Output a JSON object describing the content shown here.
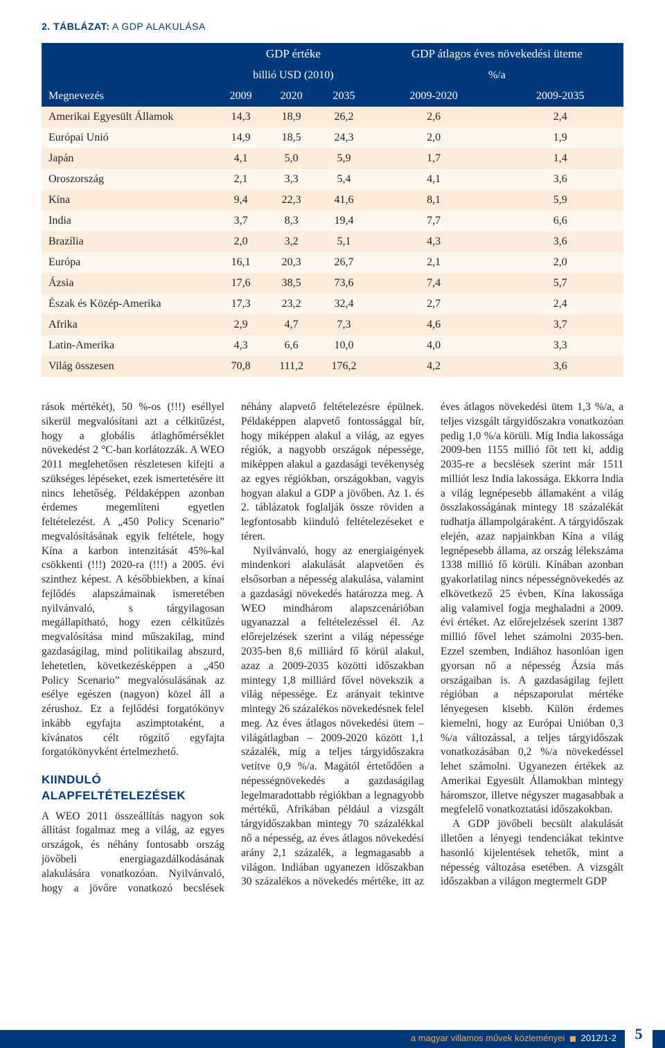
{
  "table": {
    "title_bold": "2. TÁBLÁZAT:",
    "title_rest": " A GDP ALAKULÁSA",
    "group_headers": {
      "blank": "",
      "gdp_value": "GDP értéke",
      "gdp_growth": "GDP átlagos éves növekedési üteme"
    },
    "unit_headers": {
      "billion_usd": "billió USD (2010)",
      "pct_a": "%/a"
    },
    "col_headers": [
      "Megnevezés",
      "2009",
      "2020",
      "2035",
      "2009-2020",
      "2009-2035"
    ],
    "rows": [
      {
        "name": "Amerikai Egyesült Államok",
        "v": [
          "14,3",
          "18,9",
          "26,2",
          "2,6",
          "2,4"
        ]
      },
      {
        "name": "Európai Unió",
        "v": [
          "14,9",
          "18,5",
          "24,3",
          "2,0",
          "1,9"
        ]
      },
      {
        "name": "Japán",
        "v": [
          "4,1",
          "5,0",
          "5,9",
          "1,7",
          "1,4"
        ]
      },
      {
        "name": "Oroszország",
        "v": [
          "2,1",
          "3,3",
          "5,4",
          "4,1",
          "3,6"
        ]
      },
      {
        "name": "Kína",
        "v": [
          "9,4",
          "22,3",
          "41,6",
          "8,1",
          "5,9"
        ]
      },
      {
        "name": "India",
        "v": [
          "3,7",
          "8,3",
          "19,4",
          "7,7",
          "6,6"
        ]
      },
      {
        "name": "Brazília",
        "v": [
          "2,0",
          "3,2",
          "5,1",
          "4,3",
          "3,6"
        ]
      },
      {
        "name": "Európa",
        "v": [
          "16,1",
          "20,3",
          "26,7",
          "2,1",
          "2,0"
        ]
      },
      {
        "name": "Ázsia",
        "v": [
          "17,6",
          "38,5",
          "73,6",
          "7,4",
          "5,7"
        ]
      },
      {
        "name": "Észak és Közép-Amerika",
        "v": [
          "17,3",
          "23,2",
          "32,4",
          "2,7",
          "2,4"
        ]
      },
      {
        "name": "Afrika",
        "v": [
          "2,9",
          "4,7",
          "7,3",
          "4,6",
          "3,7"
        ]
      },
      {
        "name": "Latin-Amerika",
        "v": [
          "4,3",
          "6,6",
          "10,0",
          "4,0",
          "3,3"
        ]
      },
      {
        "name": "Világ összesen",
        "v": [
          "70,8",
          "111,2",
          "176,2",
          "4,2",
          "3,6"
        ]
      }
    ],
    "colors": {
      "header_bg": "#003a7a",
      "stripe_a": "#fdecda",
      "stripe_b": "#fef7ee"
    }
  },
  "body": {
    "p1": "rások mértékét), 50 %-os (!!!) eséllyel sikerül megvalósítani azt a célkitűzést, hogy a globális átlaghőmérséklet növekedést 2 °C-ban korlátozzák. A WEO 2011 meglehetősen részletesen kifejti a szükséges lépéseket, ezek ismertetésére itt nincs lehetőség. Példaképpen azonban érdemes megemlíteni egyetlen feltételezést. A „450 Policy Scenario” megvalósításának egyik feltétele, hogy Kína a karbon intenzitását 45%-kal csökkenti (!!!) 2020-ra (!!!) a 2005. évi szinthez képest. A későbbiekben, a kínai fejlődés alapszámainak ismeretében nyilvánvaló, s tárgyilagosan megállapítható, hogy ezen célkitűzés megvalósítása mind műszakilag, mind gazdaságilag, mind politikailag abszurd, lehetetlen, következésképpen a „450 Policy Scenario” megvalósulásának az esélye egészen (nagyon) közel áll a zérushoz. Ez a fejlődési forgatókönyv inkább egyfajta aszimptotaként, a kívánatos célt rögzítő egyfajta forgatókönyvként értelmezhető.",
    "h2": "KIINDULÓ ALAPFELTÉTELEZÉSEK",
    "p2": "A WEO 2011 összeállítás nagyon sok állítást fogalmaz meg a világ, az egyes országok, és néhány fontosabb ország jövőbeli energiagazdálkodásának alakulására vonatkozóan. Nyilvánvaló, hogy a jövőre vonatkozó becslések néhány alapvető feltételezésre épülnek. Példaképpen alapvető fontossággal bír, hogy miképpen alakul a világ, az egyes régiók, a nagyobb országok népessége, miképpen alakul a gazdasági tevékenység az egyes régiókban, országokban, vagyis hogyan alakul a GDP a jövőben. Az 1. és 2. táblázatok foglalják össze röviden a legfontosabb kiinduló feltételezéseket e téren.",
    "p3": "Nyilvánvaló, hogy az energiaigények mindenkori alakulását alapvetően és elsősorban a népesség alakulása, valamint a gazdasági növekedés határozza meg. A WEO mindhárom alapszcenárióban ugyanazzal a feltételezéssel él. Az előrejelzések szerint a világ népessége 2035-ben 8,6 milliárd fő körül alakul, azaz a 2009-2035 közötti időszakban mintegy 1,8 milliárd fővel növekszik a világ népessége. Ez arányait tekintve mintegy 26 százalékos növekedésnek felel meg. Az éves átlagos növekedési ütem – világátlagban – 2009-2020 között 1,1 százalék, míg a teljes tárgyidőszakra vetítve 0,9 %/a. Magától értetődően a népességnövekedés a gazdaságilag legelmaradottabb régiókban a legnagyobb mértékű, Afrikában például a vizsgált tárgyidőszakban mintegy 70 százalékkal nő a népesség, az éves átlagos növekedési arány 2,1 százalék, a legmagasabb a világon. Indiában ugyanezen időszakban 30 százalékos a növekedés mértéke, itt az éves átlagos növekedési ütem 1,3 %/a, a teljes vizsgált tárgyidőszakra vonatkozóan pedig 1,0 %/a körüli. Míg India lakossága 2009-ben 1155 millió főt tett ki, addig 2035-re a becslések szerint már 1511 milliót lesz India lakossága. Ekkorra India a világ legnépesebb államaként a világ összlakosságának mintegy 18 százalékát tudhatja állampolgáraként. A tárgyidőszak elején, azaz napjainkban Kína a világ legnépesebb állama, az ország lélekszáma 1338 millió fő körüli. Kínában azonban gyakorlatilag nincs népességnövekedés az elkövetkező 25 évben, Kína lakossága alig valamivel fogja meghaladni a 2009. évi értéket. Az előrejelzések szerint 1387 millió fővel lehet számolni 2035-ben. Ezzel szemben, Indiához hasonlóan igen gyorsan nő a népesség Ázsia más országaiban is. A gazdaságilag fejlett régióban a népszaporulat mértéke lényegesen kisebb. Külön érdemes kiemelni, hogy az Európai Unióban 0,3 %/a változással, a teljes tárgyidőszak vonatkozásában 0,2 %/a növekedéssel lehet számolni. Ugyanezen értékek az Amerikai Egyesült Államokban mintegy háromszor, illetve négyszer magasabbak a megfelelő vonatkoztatási időszakokban.",
    "p4": "A GDP jövőbeli becsült alakulását illetően a lényegi tendenciákat tekintve hasonló kijelentések tehetők, mint a népesség változása esetében. A vizsgált időszakban a világon megtermelt GDP"
  },
  "footer": {
    "line": "a magyar villamos művek közleményei",
    "issue": "2012/1-2",
    "page": "5"
  }
}
